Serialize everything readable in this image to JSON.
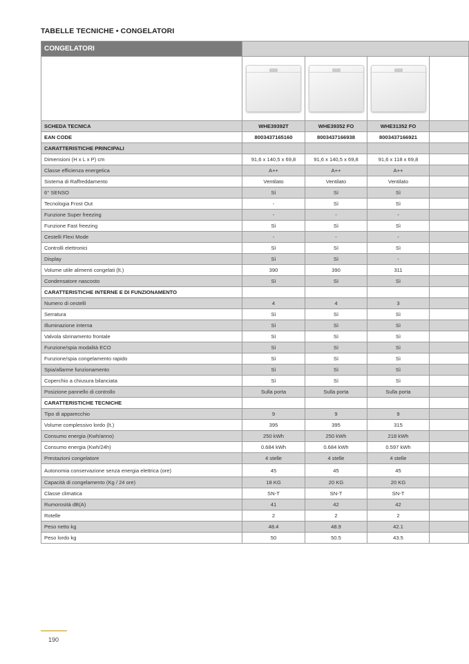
{
  "page_heading": "TABELLE TECNICHE • CONGELATORI",
  "table": {
    "title": "CONGELATORI",
    "products": [
      {
        "image": "chest-freezer-image"
      },
      {
        "image": "chest-freezer-image"
      },
      {
        "image": "chest-freezer-image"
      }
    ],
    "rows": [
      {
        "label": "SCHEDA TECNICA",
        "bold": true,
        "values": [
          "WHE39392T",
          "WHE39352 FO",
          "WHE31352 FO"
        ]
      },
      {
        "label": "EAN CODE",
        "bold": true,
        "values": [
          "8003437165160",
          "8003437166938",
          "8003437166921"
        ]
      },
      {
        "label": "CARATTERISTICHE PRINCIPALI",
        "bold": true,
        "values": [
          "",
          "",
          ""
        ]
      },
      {
        "label": "Dimensioni (H x L x P) cm",
        "values": [
          "91,6 x 140,5 x 69,8",
          "91,6 x 140,5 x 69,8",
          "91,6 x 118 x 69,8"
        ]
      },
      {
        "label": "Classe efficienza energetica",
        "values": [
          "A++",
          "A++",
          "A++"
        ]
      },
      {
        "label": "Sistema di Raffreddamento",
        "values": [
          "Ventilato",
          "Ventilato",
          "Ventilato"
        ]
      },
      {
        "label": "6° SENSO",
        "values": [
          "Sì",
          "Sì",
          "Sì"
        ]
      },
      {
        "label": "Tecnologia Frost Out",
        "values": [
          "-",
          "Sì",
          "Sì"
        ]
      },
      {
        "label": "Funzione Super freezing",
        "values": [
          "-",
          "-",
          "-"
        ]
      },
      {
        "label": "Funzione Fast freezing",
        "values": [
          "Sì",
          "Sì",
          "Sì"
        ]
      },
      {
        "label": "Cestelli Flexi Mode",
        "values": [
          "-",
          "-",
          "-"
        ]
      },
      {
        "label": "Controlli elettronici",
        "values": [
          "Sì",
          "Sì",
          "Sì"
        ]
      },
      {
        "label": "Display",
        "values": [
          "Sì",
          "Sì",
          "-"
        ]
      },
      {
        "label": "Volume utile alimenti congelati (lt.)",
        "values": [
          "390",
          "390",
          "311"
        ]
      },
      {
        "label": "Condensatore nascosto",
        "values": [
          "Sì",
          "Sì",
          "Sì"
        ]
      },
      {
        "label": "CARATTERISTICHE INTERNE E DI FUNZIONAMENTO",
        "bold": true,
        "values": [
          "",
          "",
          ""
        ]
      },
      {
        "label": "Numero di cestelli",
        "values": [
          "4",
          "4",
          "3"
        ]
      },
      {
        "label": "Serratura",
        "values": [
          "Sì",
          "Sì",
          "Sì"
        ]
      },
      {
        "label": "Illuminazione interna",
        "values": [
          "Sì",
          "Sì",
          "Sì"
        ]
      },
      {
        "label": "Valvola sbrinamento frontale",
        "values": [
          "Sì",
          "Sì",
          "Sì"
        ]
      },
      {
        "label": "Funzione/spia modalità ECO",
        "values": [
          "Sì",
          "Sì",
          "Sì"
        ]
      },
      {
        "label": "Funzione/spia congelamento rapido",
        "values": [
          "Sì",
          "Sì",
          "Sì"
        ]
      },
      {
        "label": "Spia/allarme funzionamento",
        "values": [
          "Sì",
          "Sì",
          "Sì"
        ]
      },
      {
        "label": "Coperchio a chiusura bilanciata",
        "values": [
          "Sì",
          "Sì",
          "Sì"
        ]
      },
      {
        "label": "Posizione pannello di controllo",
        "values": [
          "Sulla porta",
          "Sulla porta",
          "Sulla porta"
        ]
      },
      {
        "label": "CARATTERISTICHE TECNICHE",
        "bold": true,
        "values": [
          "",
          "",
          ""
        ]
      },
      {
        "label": "Tipo di apparecchio",
        "values": [
          "9",
          "9",
          "9"
        ]
      },
      {
        "label": "Volume complessivo lordo (lt.)",
        "values": [
          "395",
          "395",
          "315"
        ]
      },
      {
        "label": "Consumo energia (Kwh/anno)",
        "values": [
          "250 kWh",
          "250 kWh",
          "218 kWh"
        ]
      },
      {
        "label": "Consumo energia (Kwh/24h)",
        "values": [
          "0.684 kWh",
          "0.684 kWh",
          "0.597 kWh"
        ]
      },
      {
        "label": "Prestazioni congelatore",
        "values": [
          "4 stelle",
          "4 stelle",
          "4 stelle"
        ]
      },
      {
        "label": "Autonomia conservazione senza energia elettrica (ore)",
        "tall": true,
        "values": [
          "45",
          "45",
          "45"
        ]
      },
      {
        "label": "Capacità di congelamento (Kg / 24 ore)",
        "values": [
          "18 KG",
          "20 KG",
          "20 KG"
        ]
      },
      {
        "label": "Classe climatica",
        "values": [
          "SN-T",
          "SN-T",
          "SN-T"
        ]
      },
      {
        "label": "Rumorosità dB(A)",
        "values": [
          "41",
          "42",
          "42"
        ]
      },
      {
        "label": "Rotelle",
        "values": [
          "2",
          "2",
          "2"
        ]
      },
      {
        "label": "Peso netto kg",
        "values": [
          "48.4",
          "48.9",
          "42.1"
        ]
      },
      {
        "label": "Peso lordo kg",
        "values": [
          "50",
          "50.5",
          "43.5"
        ]
      }
    ]
  },
  "colors": {
    "header_dark": "#7b7b7b",
    "row_gray": "#d4d4d4",
    "accent_line": "#e8c45a"
  },
  "footer": {
    "page_number": "190"
  }
}
